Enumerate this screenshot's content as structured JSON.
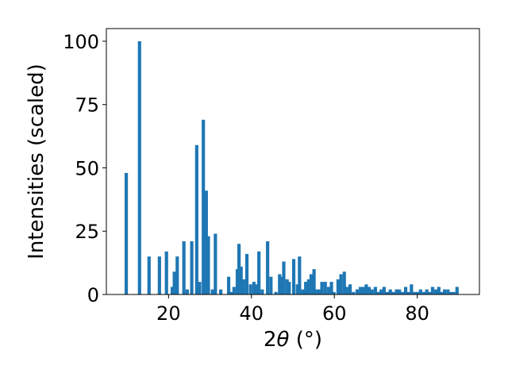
{
  "chart_data": {
    "type": "bar",
    "title": "",
    "xlabel_prefix": "2",
    "xlabel_symbol": "θ",
    "xlabel_unit": " (°)",
    "ylabel": "Intensities (scaled)",
    "xlim": [
      5,
      95
    ],
    "ylim": [
      0,
      105
    ],
    "xticks": [
      20,
      40,
      60,
      80
    ],
    "yticks": [
      0,
      25,
      50,
      75,
      100
    ],
    "bar_color": "#1f77b4",
    "bar_width": 0.8,
    "grid": false,
    "legend": "none",
    "x": [
      9.8,
      13.0,
      15.3,
      17.8,
      19.5,
      20.9,
      21.4,
      22.1,
      23.7,
      24.5,
      25.6,
      26.8,
      27.5,
      28.4,
      29.1,
      29.6,
      30.6,
      31.3,
      32.6,
      34.5,
      35.2,
      35.8,
      36.6,
      37.0,
      37.5,
      38.1,
      38.9,
      39.8,
      40.6,
      41.1,
      41.8,
      42.6,
      43.9,
      44.7,
      45.9,
      46.8,
      47.2,
      47.8,
      48.6,
      49.1,
      50.2,
      51.1,
      51.6,
      52.4,
      53.1,
      53.8,
      54.4,
      55.1,
      55.7,
      56.4,
      57.0,
      57.8,
      58.6,
      59.3,
      59.9,
      60.9,
      61.6,
      62.4,
      63.0,
      63.8,
      64.6,
      65.5,
      66.3,
      67.0,
      67.7,
      68.4,
      69.1,
      69.9,
      70.6,
      71.3,
      72.0,
      72.8,
      73.5,
      74.2,
      75.0,
      75.7,
      76.4,
      77.2,
      77.9,
      78.6,
      79.4,
      80.1,
      80.8,
      81.6,
      82.3,
      83.0,
      83.7,
      84.5,
      85.2,
      85.9,
      86.6,
      87.4,
      88.1,
      88.8,
      89.6
    ],
    "values": [
      48,
      100,
      15,
      15,
      17,
      3,
      9,
      15,
      21,
      2,
      21,
      59,
      5,
      69,
      41,
      23,
      2,
      24,
      2,
      7,
      1,
      3,
      10,
      20,
      11,
      6,
      16,
      4,
      5,
      4,
      17,
      2,
      21,
      7,
      1,
      8,
      7,
      13,
      6,
      5,
      14,
      4,
      15,
      2,
      5,
      6,
      8,
      10,
      2,
      2,
      5,
      5,
      3,
      5,
      1,
      6,
      8,
      9,
      3,
      4,
      1,
      2,
      3,
      3,
      4,
      3,
      2,
      3,
      1,
      2,
      3,
      1,
      2,
      1,
      2,
      2,
      1,
      3,
      1,
      4,
      1,
      1,
      2,
      1,
      2,
      1,
      3,
      2,
      3,
      1,
      2,
      2,
      1,
      1,
      3
    ]
  }
}
